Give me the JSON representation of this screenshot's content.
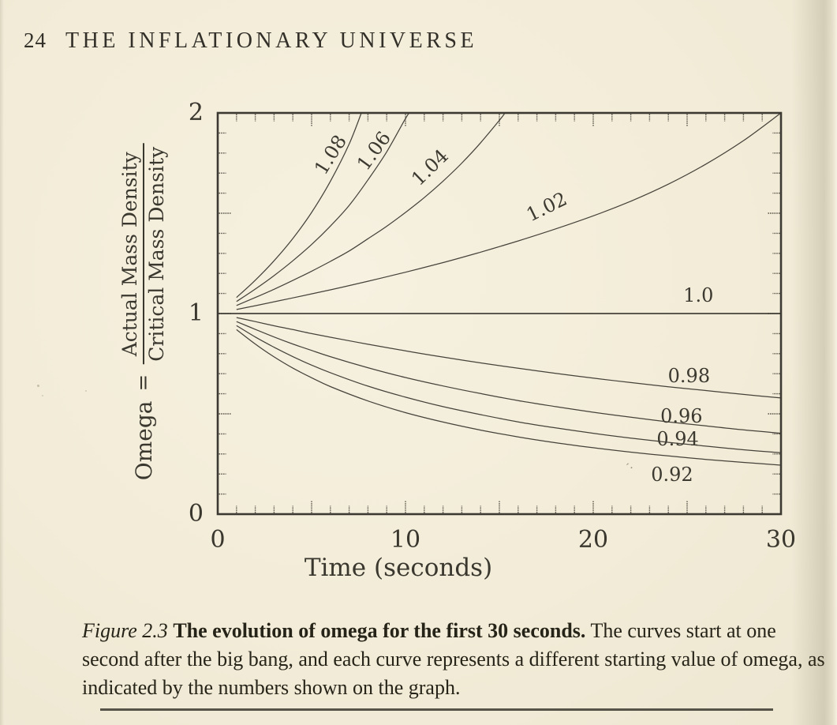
{
  "header": {
    "page_number": "24",
    "running_head": "THE INFLATIONARY UNIVERSE"
  },
  "figure": {
    "caption_label": "Figure 2.3",
    "caption_title": "The evolution of omega for the first 30 seconds.",
    "caption_body": "The curves start at one second after the big bang, and each curve represents a different starting value of omega, as indicated by the numbers shown on the graph."
  },
  "chart_data": {
    "type": "line",
    "title": "",
    "xlabel": "Time (seconds)",
    "ylabel": {
      "prefix": "Omega",
      "equals": "=",
      "numerator": "Actual Mass Density",
      "denominator": "Critical Mass Density"
    },
    "xlim": [
      0,
      30
    ],
    "ylim": [
      0,
      2
    ],
    "xticks": [
      0,
      10,
      20,
      30
    ],
    "yticks": [
      0,
      1,
      2
    ],
    "x_minor_step": 1,
    "x_major_step": 5,
    "y_minor_step": 0.1,
    "y_major_step": 0.5,
    "grid": false,
    "legend": "none (curves labeled inline)",
    "series": [
      {
        "label": "1.08",
        "start_omega": 1.08,
        "points": [
          [
            1,
            1.08
          ],
          [
            2,
            1.166
          ],
          [
            3,
            1.263
          ],
          [
            4,
            1.374
          ],
          [
            5,
            1.504
          ],
          [
            6,
            1.659
          ],
          [
            7,
            1.845
          ],
          [
            7.65,
            2.0
          ]
        ],
        "label_pos": {
          "t": 6.0,
          "omega": 1.79,
          "rot": -58
        }
      },
      {
        "label": "1.06",
        "start_omega": 1.06,
        "points": [
          [
            1,
            1.06
          ],
          [
            2,
            1.122
          ],
          [
            3,
            1.189
          ],
          [
            4,
            1.263
          ],
          [
            5,
            1.344
          ],
          [
            6,
            1.436
          ],
          [
            7,
            1.539
          ],
          [
            8,
            1.666
          ],
          [
            9,
            1.806
          ],
          [
            10,
            1.972
          ],
          [
            10.2,
            2.0
          ]
        ],
        "label_pos": {
          "t": 8.3,
          "omega": 1.81,
          "rot": -54
        }
      },
      {
        "label": "1.04",
        "start_omega": 1.04,
        "points": [
          [
            1,
            1.04
          ],
          [
            2,
            1.08
          ],
          [
            3,
            1.121
          ],
          [
            4,
            1.165
          ],
          [
            5,
            1.211
          ],
          [
            6,
            1.26
          ],
          [
            7,
            1.312
          ],
          [
            8,
            1.373
          ],
          [
            9,
            1.435
          ],
          [
            10,
            1.504
          ],
          [
            11,
            1.578
          ],
          [
            12,
            1.66
          ],
          [
            13,
            1.75
          ],
          [
            14,
            1.851
          ],
          [
            15,
            1.963
          ],
          [
            15.3,
            2.0
          ]
        ],
        "label_pos": {
          "t": 11.3,
          "omega": 1.73,
          "rot": -44
        }
      },
      {
        "label": "1.02",
        "start_omega": 1.02,
        "points": [
          [
            1,
            1.02
          ],
          [
            2,
            1.039
          ],
          [
            4,
            1.078
          ],
          [
            6,
            1.118
          ],
          [
            8,
            1.161
          ],
          [
            10,
            1.206
          ],
          [
            12,
            1.254
          ],
          [
            14,
            1.306
          ],
          [
            16,
            1.362
          ],
          [
            18,
            1.422
          ],
          [
            20,
            1.487
          ],
          [
            22,
            1.56
          ],
          [
            24,
            1.645
          ],
          [
            26,
            1.745
          ],
          [
            28,
            1.862
          ],
          [
            30,
            2.0
          ]
        ],
        "label_pos": {
          "t": 17.5,
          "omega": 1.53,
          "rot": -26
        }
      },
      {
        "label": "1.0",
        "start_omega": 1.0,
        "points": [
          [
            0,
            1.0
          ],
          [
            30,
            1.0
          ]
        ],
        "label_pos": {
          "t": 25.6,
          "omega": 1.09,
          "rot": 0
        }
      },
      {
        "label": "0.98",
        "start_omega": 0.98,
        "points": [
          [
            1,
            0.98
          ],
          [
            2,
            0.96
          ],
          [
            3,
            0.939
          ],
          [
            4,
            0.92
          ],
          [
            5,
            0.9
          ],
          [
            6,
            0.882
          ],
          [
            8,
            0.847
          ],
          [
            10,
            0.814
          ],
          [
            12,
            0.783
          ],
          [
            14,
            0.754
          ],
          [
            16,
            0.727
          ],
          [
            18,
            0.702
          ],
          [
            20,
            0.678
          ],
          [
            22,
            0.656
          ],
          [
            24,
            0.635
          ],
          [
            26,
            0.616
          ],
          [
            28,
            0.597
          ],
          [
            30,
            0.579
          ]
        ],
        "label_pos": {
          "t": 25.1,
          "omega": 0.69,
          "rot": 0
        }
      },
      {
        "label": "0.96",
        "start_omega": 0.96,
        "points": [
          [
            1,
            0.96
          ],
          [
            2,
            0.921
          ],
          [
            3,
            0.883
          ],
          [
            4,
            0.848
          ],
          [
            5,
            0.816
          ],
          [
            6,
            0.785
          ],
          [
            8,
            0.73
          ],
          [
            10,
            0.681
          ],
          [
            12,
            0.639
          ],
          [
            14,
            0.601
          ],
          [
            16,
            0.566
          ],
          [
            18,
            0.536
          ],
          [
            20,
            0.508
          ],
          [
            22,
            0.483
          ],
          [
            24,
            0.46
          ],
          [
            26,
            0.44
          ],
          [
            28,
            0.42
          ],
          [
            30,
            0.403
          ]
        ],
        "label_pos": {
          "t": 24.7,
          "omega": 0.49,
          "rot": 0
        }
      },
      {
        "label": "0.94",
        "start_omega": 0.94,
        "points": [
          [
            1,
            0.94
          ],
          [
            2,
            0.883
          ],
          [
            3,
            0.832
          ],
          [
            4,
            0.785
          ],
          [
            5,
            0.743
          ],
          [
            6,
            0.705
          ],
          [
            8,
            0.638
          ],
          [
            10,
            0.583
          ],
          [
            12,
            0.536
          ],
          [
            14,
            0.496
          ],
          [
            16,
            0.46
          ],
          [
            18,
            0.43
          ],
          [
            20,
            0.403
          ],
          [
            22,
            0.379
          ],
          [
            24,
            0.358
          ],
          [
            26,
            0.339
          ],
          [
            28,
            0.321
          ],
          [
            30,
            0.306
          ]
        ],
        "label_pos": {
          "t": 24.5,
          "omega": 0.375,
          "rot": 0
        }
      },
      {
        "label": "0.92",
        "start_omega": 0.92,
        "points": [
          [
            1,
            0.92
          ],
          [
            2,
            0.848
          ],
          [
            3,
            0.784
          ],
          [
            4,
            0.728
          ],
          [
            5,
            0.68
          ],
          [
            6,
            0.636
          ],
          [
            8,
            0.564
          ],
          [
            10,
            0.506
          ],
          [
            12,
            0.459
          ],
          [
            14,
            0.419
          ],
          [
            16,
            0.385
          ],
          [
            18,
            0.356
          ],
          [
            20,
            0.331
          ],
          [
            22,
            0.309
          ],
          [
            24,
            0.29
          ],
          [
            26,
            0.273
          ],
          [
            28,
            0.258
          ],
          [
            30,
            0.244
          ]
        ],
        "label_pos": {
          "t": 24.2,
          "omega": 0.197,
          "rot": 0
        }
      }
    ],
    "colors": {
      "paper": "#f2ecd8",
      "ink": "#3c3931",
      "frame": "#3c3933"
    }
  }
}
